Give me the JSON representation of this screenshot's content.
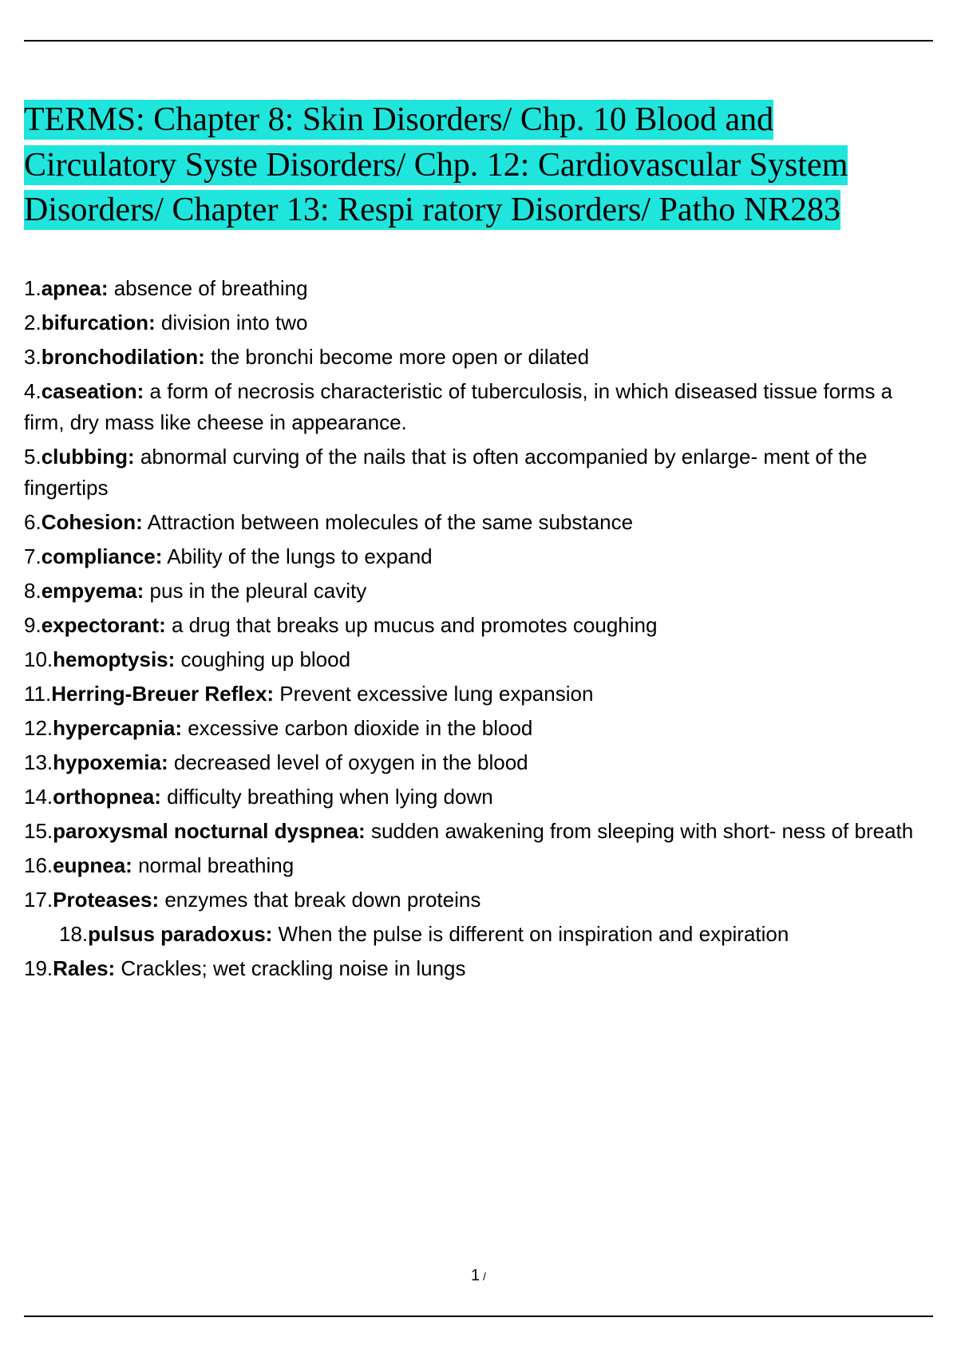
{
  "title": "TERMS: Chapter 8: Skin Disorders/ Chp. 10 Blood and Circulatory Syste Disorders/ Chp. 12: Cardiovascular System Disorders/ Chapter 13: Respi ratory Disorders/ Patho NR283",
  "highlight_color": "#1fe5dd",
  "text_color": "#000000",
  "background_color": "#ffffff",
  "title_fontsize": 42,
  "body_fontsize": 26,
  "terms": [
    {
      "num": "1.",
      "name": "apnea:",
      "def": " absence of breathing",
      "indented": false
    },
    {
      "num": "2.",
      "name": "bifurcation:",
      "def": " division into two",
      "indented": false
    },
    {
      "num": "3.",
      "name": "bronchodilation:",
      "def": " the bronchi become more open or dilated",
      "indented": false
    },
    {
      "num": "4.",
      "name": "caseation:",
      "def": " a form of necrosis characteristic of tuberculosis, in which diseased tissue forms a firm, dry mass like cheese in appearance.",
      "indented": false
    },
    {
      "num": "5.",
      "name": "clubbing:",
      "def": " abnormal curving of the nails that is often accompanied by enlarge- ment of the fingertips",
      "indented": false
    },
    {
      "num": "6.",
      "name": "Cohesion:",
      "def": " Attraction between molecules of the same substance",
      "indented": false
    },
    {
      "num": "7.",
      "name": "compliance:",
      "def": " Ability of the lungs to expand",
      "indented": false
    },
    {
      "num": "8.",
      "name": "empyema:",
      "def": " pus in the pleural cavity",
      "indented": false
    },
    {
      "num": "9.",
      "name": "expectorant:",
      "def": " a drug that breaks up mucus and promotes coughing",
      "indented": false
    },
    {
      "num": "10.",
      "name": "hemoptysis:",
      "def": " coughing up blood",
      "indented": false
    },
    {
      "num": "11.",
      "name": "Herring-Breuer Reflex:",
      "def": " Prevent excessive lung expansion",
      "indented": false
    },
    {
      "num": "12.",
      "name": "hypercapnia:",
      "def": " excessive carbon dioxide in the blood",
      "indented": false
    },
    {
      "num": "13.",
      "name": "hypoxemia:",
      "def": " decreased level of oxygen in the blood",
      "indented": false
    },
    {
      "num": "14.",
      "name": "orthopnea:",
      "def": " difficulty breathing when lying down",
      "indented": false
    },
    {
      "num": "15.",
      "name": "paroxysmal nocturnal dyspnea:",
      "def": " sudden awakening from sleeping with short- ness of breath",
      "indented": false
    },
    {
      "num": "16.",
      "name": "eupnea:",
      "def": " normal breathing",
      "indented": false
    },
    {
      "num": "17.",
      "name": "Proteases:",
      "def": " enzymes that break down proteins",
      "indented": false
    },
    {
      "num": "18.",
      "name": "pulsus paradoxus:",
      "def": " When the pulse is different on inspiration and expiration",
      "indented": true
    },
    {
      "num": "19.",
      "name": "Rales:",
      "def": " Crackles; wet crackling noise in lungs",
      "indented": false
    }
  ],
  "page_number": "1",
  "page_slash": " /"
}
